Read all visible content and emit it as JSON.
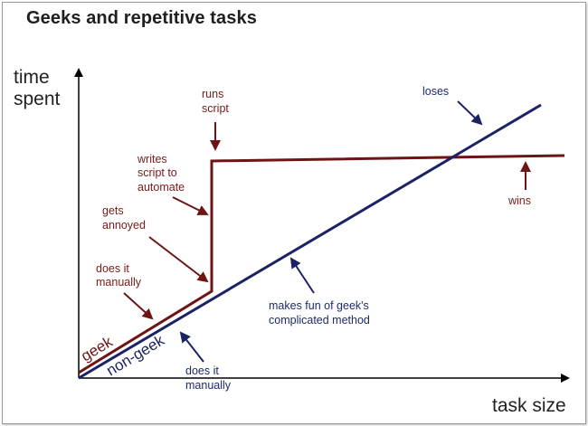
{
  "title": "Geeks and repetitive tasks",
  "axes": {
    "y_label": [
      "time",
      "spent"
    ],
    "x_label": "task size"
  },
  "series": {
    "geek": "geek",
    "non_geek": "non-geek"
  },
  "annotations": {
    "runs_script": [
      "runs",
      "script"
    ],
    "writes_script": [
      "writes",
      "script to",
      "automate"
    ],
    "gets_annoyed": [
      "gets",
      "annoyed"
    ],
    "geek_does_it_manually": [
      "does it",
      "manually"
    ],
    "loses": [
      "loses"
    ],
    "wins": [
      "wins"
    ],
    "makes_fun": [
      "makes fun of geek's",
      "complicated method"
    ],
    "nongeek_does_it_manually": [
      "does it",
      "manually"
    ]
  },
  "colors": {
    "geek": "#6e1414",
    "non_geek": "#1c2266",
    "axis": "#000000"
  }
}
